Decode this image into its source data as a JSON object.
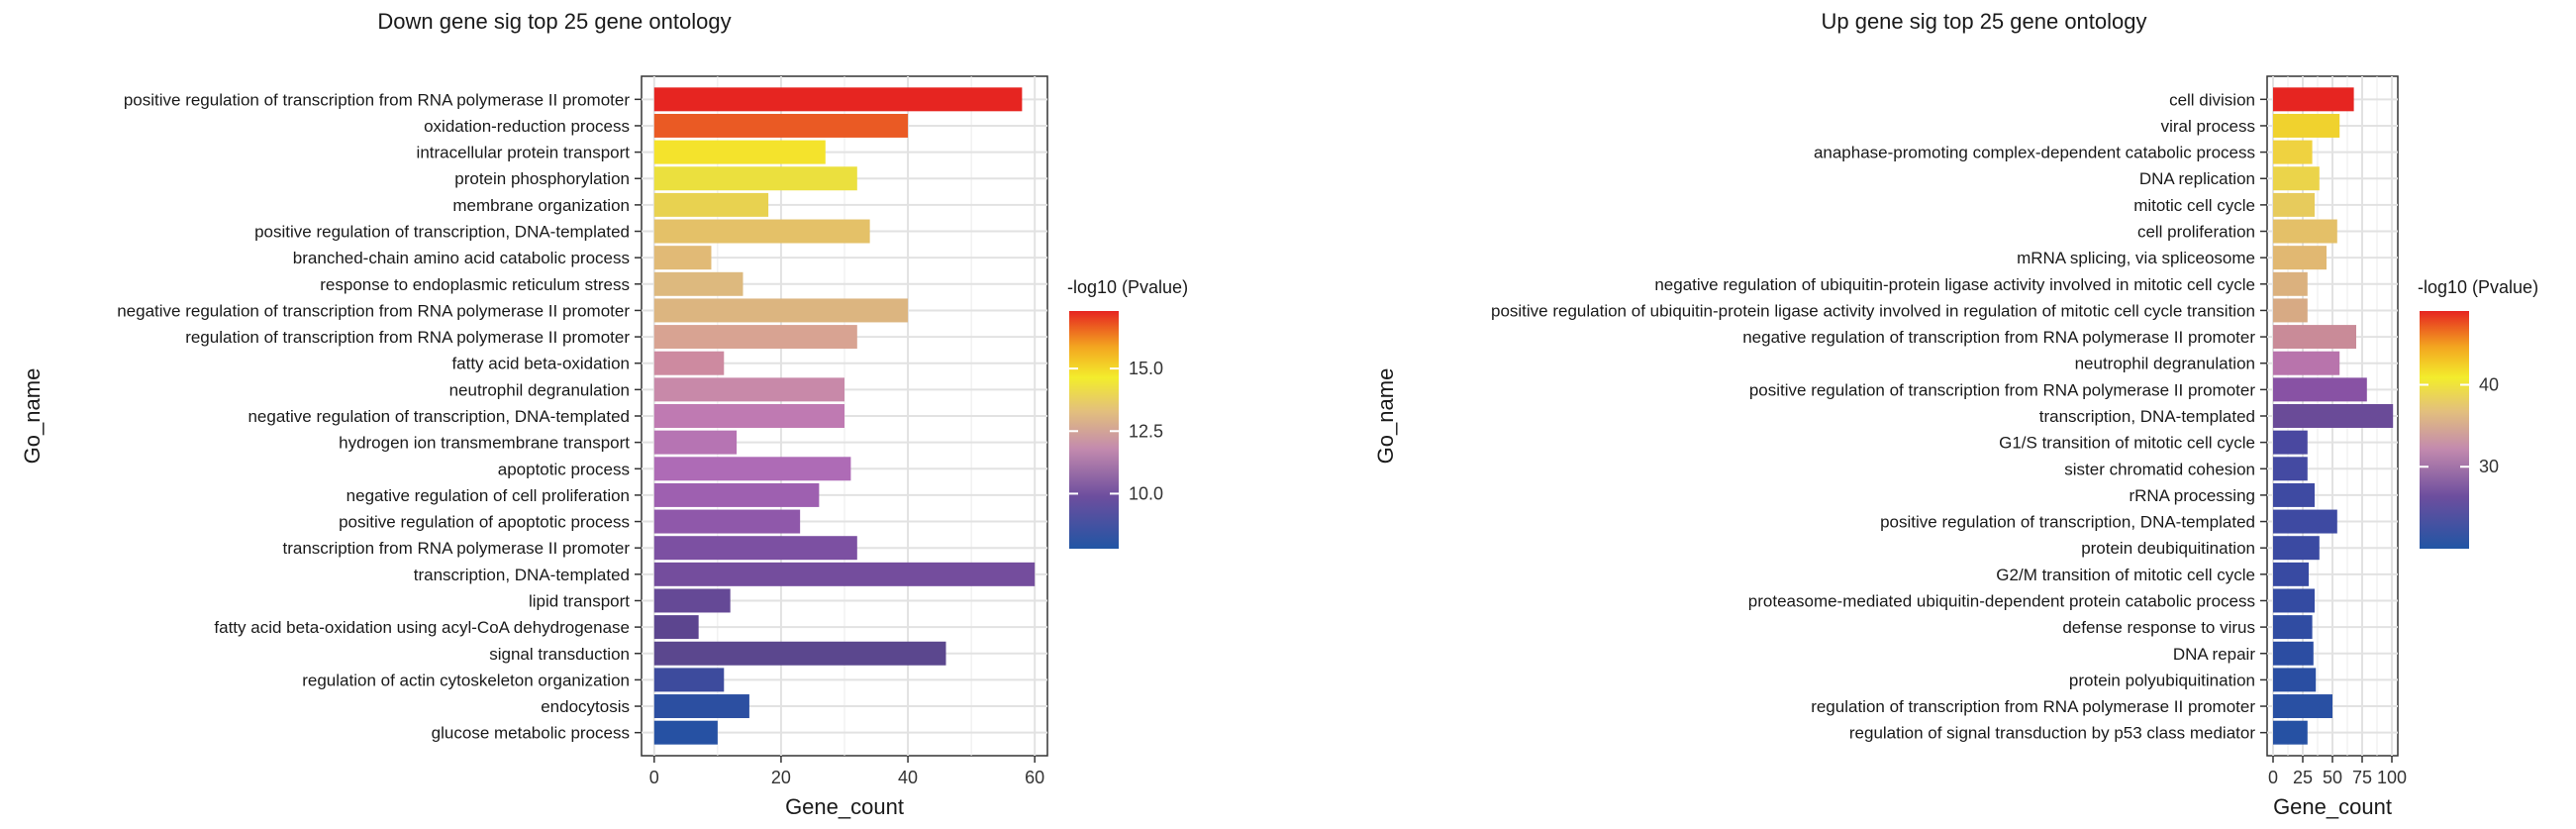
{
  "chart_data": [
    {
      "type": "bar",
      "orientation": "horizontal",
      "title": "Down gene sig top 25 gene ontology",
      "xlabel": "Gene_count",
      "ylabel": "Go_name",
      "xlim": [
        -2,
        62
      ],
      "xticks": [
        0,
        20,
        40,
        60
      ],
      "grid": true,
      "legend_position": "right",
      "legend": {
        "title": "-log10 (Pvalue)",
        "ticks": [
          10.0,
          12.5,
          15.0
        ],
        "tick_labels": [
          "10.0",
          "12.5",
          "15.0"
        ],
        "range": [
          7.8,
          17.3
        ]
      },
      "categories": [
        "positive regulation of transcription from RNA polymerase II promoter",
        "oxidation-reduction process",
        "intracellular protein transport",
        "protein phosphorylation",
        "membrane organization",
        "positive regulation of transcription, DNA-templated",
        "branched-chain amino acid catabolic process",
        "response to endoplasmic reticulum stress",
        "negative regulation of transcription from RNA polymerase II promoter",
        "regulation of transcription from RNA polymerase II promoter",
        "fatty acid beta-oxidation",
        "neutrophil degranulation",
        "negative regulation of transcription, DNA-templated",
        "hydrogen ion transmembrane transport",
        "apoptotic process",
        "negative regulation of cell proliferation",
        "positive regulation of apoptotic process",
        "transcription from RNA polymerase II promoter",
        "transcription, DNA-templated",
        "lipid transport",
        "fatty acid beta-oxidation using acyl-CoA dehydrogenase",
        "signal transduction",
        "regulation of actin cytoskeleton organization",
        "endocytosis",
        "glucose metabolic process"
      ],
      "values": [
        58,
        40,
        27,
        32,
        18,
        34,
        9,
        14,
        40,
        32,
        11,
        30,
        30,
        13,
        31,
        26,
        23,
        32,
        60,
        12,
        7,
        46,
        11,
        15,
        10
      ],
      "colors": [
        "#e62521",
        "#ea5a24",
        "#f4e32c",
        "#ebe03e",
        "#e8d250",
        "#e4c168",
        "#e1ba76",
        "#ddb97e",
        "#dcb580",
        "#d8a392",
        "#cd8aa0",
        "#c889a9",
        "#bf7ab2",
        "#b674b3",
        "#ae6bb6",
        "#9e60b0",
        "#8f58aa",
        "#7c50a2",
        "#744d9d",
        "#654996",
        "#5c458f",
        "#5b478e",
        "#3d4b9d",
        "#2c4fa1",
        "#2651a3"
      ]
    },
    {
      "type": "bar",
      "orientation": "horizontal",
      "title": "Up gene sig top 25 gene ontology",
      "xlabel": "Gene_count",
      "ylabel": "Go_name",
      "xlim": [
        -5,
        105
      ],
      "xticks": [
        0,
        25,
        50,
        75,
        100
      ],
      "grid": true,
      "legend_position": "right",
      "legend": {
        "title": "-log10 (Pvalue)",
        "ticks": [
          30,
          40
        ],
        "tick_labels": [
          "30",
          "40"
        ],
        "range": [
          20,
          49
        ]
      },
      "categories": [
        "cell division",
        "viral process",
        "anaphase-promoting complex-dependent catabolic process",
        "DNA replication",
        "mitotic cell cycle",
        "cell proliferation",
        "mRNA splicing, via spliceosome",
        "negative regulation of ubiquitin-protein ligase activity involved in mitotic cell cycle",
        "positive regulation of ubiquitin-protein ligase activity involved in regulation of mitotic cell cycle transition",
        "negative regulation of transcription from RNA polymerase II promoter",
        "neutrophil degranulation",
        "positive regulation of transcription from RNA polymerase II promoter",
        "transcription, DNA-templated",
        "G1/S transition of mitotic cell cycle",
        "sister chromatid cohesion",
        "rRNA processing",
        "positive regulation of transcription, DNA-templated",
        "protein deubiquitination",
        "G2/M transition of mitotic cell cycle",
        "proteasome-mediated ubiquitin-dependent protein catabolic process",
        "defense response to virus",
        "DNA repair",
        "protein polyubiquitination",
        "regulation of transcription from RNA polymerase II promoter",
        "regulation of signal transduction by p53 class mediator"
      ],
      "values": [
        68,
        56,
        33,
        39,
        35,
        54,
        45,
        29,
        29,
        70,
        56,
        79,
        101,
        29,
        29,
        35,
        54,
        39,
        30,
        35,
        33,
        34,
        36,
        50,
        29
      ],
      "colors": [
        "#e62521",
        "#f0d22e",
        "#efd240",
        "#ebd44a",
        "#e7cb5c",
        "#e4c068",
        "#e1b872",
        "#dbb17e",
        "#d7aa84",
        "#c98b98",
        "#b874ac",
        "#8852a4",
        "#6a4b98",
        "#4a48a0",
        "#444aa2",
        "#3e4aa2",
        "#3e4aa2",
        "#3b4aa2",
        "#384aa2",
        "#344ba2",
        "#304ca2",
        "#2c4da2",
        "#2a4ea2",
        "#2950a3",
        "#2651a3"
      ]
    }
  ]
}
